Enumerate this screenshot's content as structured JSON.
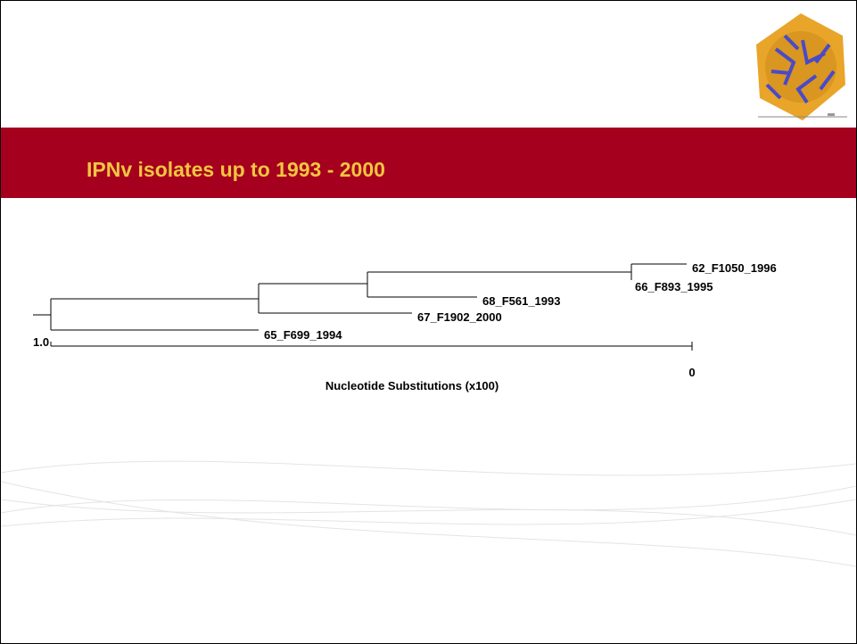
{
  "header": {
    "title": "IPNv isolates up to 1993 - 2000"
  },
  "tree": {
    "leaves": [
      "62_F1050_1996",
      "66_F893_1995",
      "68_F561_1993",
      "67_F1902_2000",
      "65_F699_1994"
    ],
    "scale": {
      "left_label": "1.0",
      "right_label": "0",
      "axis_label": "Nucleotide Substitutions (x100)"
    }
  }
}
